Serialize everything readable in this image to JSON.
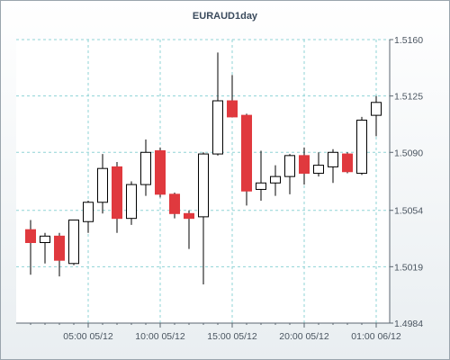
{
  "chart_data": {
    "type": "candlestick",
    "title": "EURAUD1day",
    "xlabel": "",
    "ylabel": "",
    "ylim": [
      1.4984,
      1.516
    ],
    "y_ticks": [
      "1.5160",
      "1.5125",
      "1.5090",
      "1.5054",
      "1.5019",
      "1.4984"
    ],
    "x_ticks": [
      "05:00 05/12",
      "10:00 05/12",
      "15:00 05/12",
      "20:00 05/12",
      "01:00 06/12"
    ],
    "grid": true,
    "colors": {
      "bullish_body": "#ffffff",
      "bearish_body": "#e0393e",
      "wick": "#000000",
      "grid": "#8fd3d6",
      "plot_background": "#ffffff",
      "frame_background": "#eef2f4"
    },
    "candles": [
      {
        "open": 1.5042,
        "high": 1.5048,
        "low": 1.5014,
        "close": 1.5034
      },
      {
        "open": 1.5034,
        "high": 1.504,
        "low": 1.5021,
        "close": 1.5038
      },
      {
        "open": 1.5038,
        "high": 1.504,
        "low": 1.5013,
        "close": 1.5023
      },
      {
        "open": 1.5021,
        "high": 1.5048,
        "low": 1.502,
        "close": 1.5048
      },
      {
        "open": 1.5047,
        "high": 1.506,
        "low": 1.504,
        "close": 1.5059
      },
      {
        "open": 1.5059,
        "high": 1.5089,
        "low": 1.5052,
        "close": 1.508
      },
      {
        "open": 1.5081,
        "high": 1.5084,
        "low": 1.504,
        "close": 1.5049
      },
      {
        "open": 1.5049,
        "high": 1.5072,
        "low": 1.5045,
        "close": 1.507
      },
      {
        "open": 1.507,
        "high": 1.5098,
        "low": 1.5063,
        "close": 1.509
      },
      {
        "open": 1.5091,
        "high": 1.5093,
        "low": 1.5062,
        "close": 1.5064
      },
      {
        "open": 1.5064,
        "high": 1.5065,
        "low": 1.5049,
        "close": 1.5052
      },
      {
        "open": 1.5052,
        "high": 1.5054,
        "low": 1.503,
        "close": 1.5049
      },
      {
        "open": 1.505,
        "high": 1.509,
        "low": 1.5008,
        "close": 1.5089
      },
      {
        "open": 1.5089,
        "high": 1.5152,
        "low": 1.5088,
        "close": 1.5122
      },
      {
        "open": 1.5122,
        "high": 1.5138,
        "low": 1.5112,
        "close": 1.5112
      },
      {
        "open": 1.5113,
        "high": 1.5114,
        "low": 1.5057,
        "close": 1.5066
      },
      {
        "open": 1.5067,
        "high": 1.5091,
        "low": 1.506,
        "close": 1.5071
      },
      {
        "open": 1.5071,
        "high": 1.5082,
        "low": 1.5063,
        "close": 1.5075
      },
      {
        "open": 1.5075,
        "high": 1.5089,
        "low": 1.5064,
        "close": 1.5088
      },
      {
        "open": 1.5088,
        "high": 1.5093,
        "low": 1.507,
        "close": 1.5077
      },
      {
        "open": 1.5077,
        "high": 1.509,
        "low": 1.5075,
        "close": 1.5082
      },
      {
        "open": 1.5081,
        "high": 1.5092,
        "low": 1.5071,
        "close": 1.509
      },
      {
        "open": 1.5089,
        "high": 1.509,
        "low": 1.5077,
        "close": 1.5078
      },
      {
        "open": 1.5077,
        "high": 1.5112,
        "low": 1.5076,
        "close": 1.511
      },
      {
        "open": 1.5113,
        "high": 1.5125,
        "low": 1.51,
        "close": 1.5121
      }
    ]
  }
}
